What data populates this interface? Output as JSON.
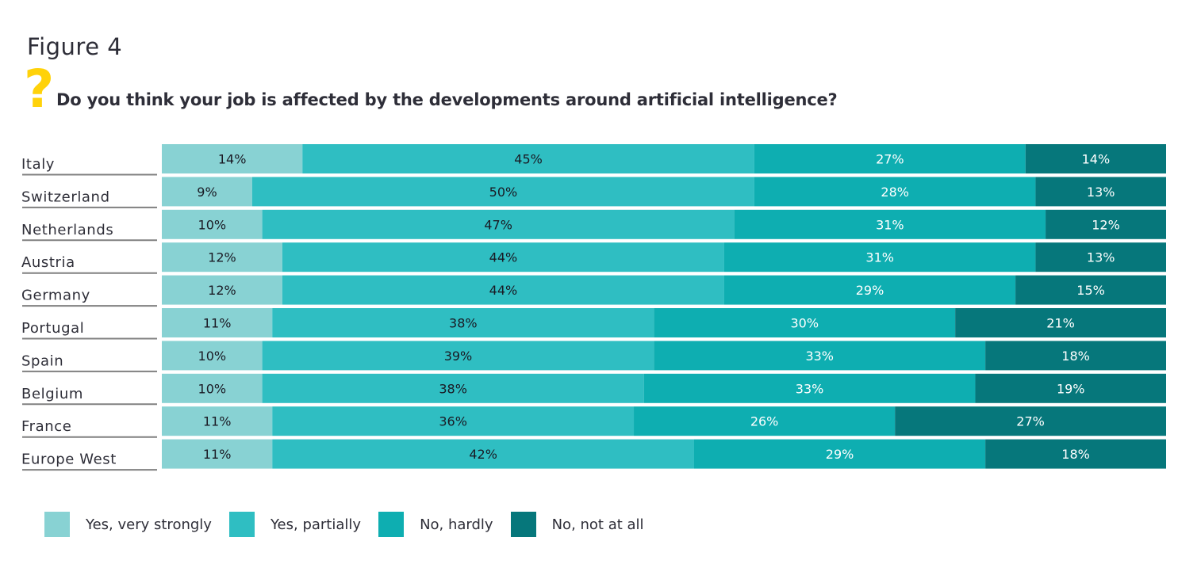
{
  "figure_label": "Figure 4",
  "question_icon": "question-mark-icon",
  "question_mark": "?",
  "chart_data": {
    "type": "bar",
    "orientation": "horizontal",
    "stacked": true,
    "title": "Do you think your job is affected by the developments around artificial intelligence?",
    "xlabel": "",
    "ylabel": "",
    "xlim": [
      0,
      100
    ],
    "unit": "%",
    "grid": false,
    "legend_position": "bottom-left",
    "categories": [
      "Italy",
      "Switzerland",
      "Netherlands",
      "Austria",
      "Germany",
      "Portugal",
      "Spain",
      "Belgium",
      "France",
      "Europe West"
    ],
    "series": [
      {
        "name": "Yes, very strongly",
        "color": "#88d2d3",
        "label_color": "#1a1a24",
        "values": [
          14,
          9,
          10,
          12,
          12,
          11,
          10,
          10,
          11,
          11
        ]
      },
      {
        "name": "Yes, partially",
        "color": "#2fbec2",
        "label_color": "#1a1a24",
        "values": [
          45,
          50,
          47,
          44,
          44,
          38,
          39,
          38,
          36,
          42
        ]
      },
      {
        "name": "No, hardly",
        "color": "#0eaeb1",
        "label_color": "#ffffff",
        "values": [
          27,
          28,
          31,
          31,
          29,
          30,
          33,
          33,
          26,
          29
        ]
      },
      {
        "name": "No, not at all",
        "color": "#06777b",
        "label_color": "#ffffff",
        "values": [
          14,
          13,
          12,
          13,
          15,
          21,
          18,
          19,
          27,
          18
        ]
      }
    ]
  }
}
